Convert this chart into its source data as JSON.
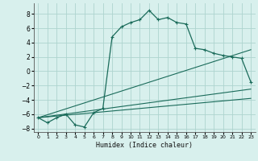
{
  "xlabel": "Humidex (Indice chaleur)",
  "background_color": "#d8f0ed",
  "grid_color": "#aed4cf",
  "line_color": "#1a6b5a",
  "xlim": [
    -0.5,
    23.5
  ],
  "ylim": [
    -8.5,
    9.5
  ],
  "xticks": [
    0,
    1,
    2,
    3,
    4,
    5,
    6,
    7,
    8,
    9,
    10,
    11,
    12,
    13,
    14,
    15,
    16,
    17,
    18,
    19,
    20,
    21,
    22,
    23
  ],
  "yticks": [
    -8,
    -6,
    -4,
    -2,
    0,
    2,
    4,
    6,
    8
  ],
  "main_x": [
    0,
    1,
    2,
    3,
    4,
    5,
    6,
    7,
    8,
    9,
    10,
    11,
    12,
    13,
    14,
    15,
    16,
    17,
    18,
    19,
    20,
    21,
    22,
    23
  ],
  "main_y": [
    -6.5,
    -7.2,
    -6.5,
    -6.0,
    -7.5,
    -7.8,
    -5.8,
    -5.2,
    4.8,
    6.2,
    6.8,
    7.2,
    8.5,
    7.2,
    7.5,
    6.8,
    6.6,
    3.2,
    3.0,
    2.5,
    2.2,
    2.0,
    1.8,
    -1.5
  ],
  "line1_x": [
    0,
    23
  ],
  "line1_y": [
    -6.5,
    3.0
  ],
  "line2_x": [
    0,
    23
  ],
  "line2_y": [
    -6.5,
    -2.5
  ],
  "line3_x": [
    0,
    23
  ],
  "line3_y": [
    -6.5,
    -3.8
  ]
}
